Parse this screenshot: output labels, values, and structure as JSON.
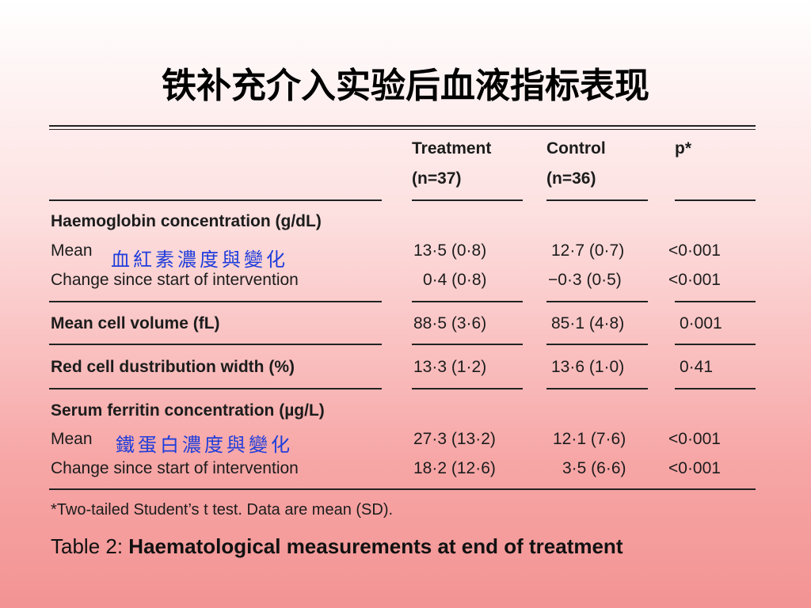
{
  "slide_title": "铁补充介入实验后血液指标表现",
  "table": {
    "columns": [
      {
        "name": "Treatment",
        "n": "(n=37)"
      },
      {
        "name": "Control",
        "n": "(n=36)"
      },
      {
        "name": "p*",
        "n": ""
      }
    ],
    "sections": {
      "hb": {
        "heading": "Haemoglobin concentration (g/dL)",
        "annotation": "血紅素濃度與變化",
        "mean": {
          "label": "Mean",
          "treatment": "13·5 (0·8)",
          "control": "12·7 (0·7)",
          "p": "<0·001"
        },
        "change": {
          "label": "Change since start of intervention",
          "treatment": "0·4 (0·8)",
          "control": "−0·3 (0·5)",
          "p": "<0·001"
        }
      },
      "mcv": {
        "label": "Mean cell volume (fL)",
        "treatment": "88·5 (3·6)",
        "control": "85·1 (4·8)",
        "p": "0·001"
      },
      "rdw": {
        "label": "Red cell dustribution width (%)",
        "treatment": "13·3 (1·2)",
        "control": "13·6 (1·0)",
        "p": "0·41"
      },
      "ferritin": {
        "heading": "Serum ferritin concentration (µg/L)",
        "annotation": "鐵蛋白濃度與變化",
        "mean": {
          "label": "Mean",
          "treatment": "27·3 (13·2)",
          "control": "12·1 (7·6)",
          "p": "<0·001"
        },
        "change": {
          "label": "Change since start of intervention",
          "treatment": "18·2 (12·6)",
          "control": "3·5 (6·6)",
          "p": "<0·001"
        }
      }
    },
    "footnote": "*Two-tailed Student’s t test. Data are mean (SD)."
  },
  "caption": {
    "prefix": "Table 2: ",
    "text": "Haematological measurements at end of treatment"
  }
}
